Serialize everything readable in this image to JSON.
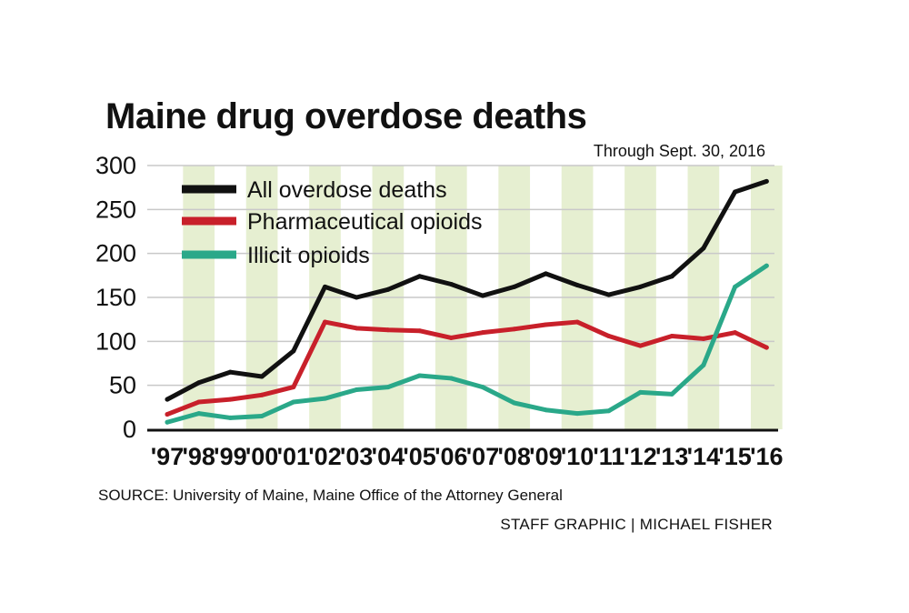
{
  "title": "Maine drug overdose deaths",
  "subtitle": "Through Sept. 30, 2016",
  "source": "SOURCE: University of Maine, Maine Office of the Attorney General",
  "credit": "STAFF GRAPHIC | MICHAEL FISHER",
  "colors": {
    "all": "#111111",
    "pharma": "#c8202a",
    "illicit": "#2aa889",
    "stripe": "#e6efd1",
    "grid": "#c9c9c9"
  },
  "chart_data": {
    "type": "line",
    "title": "Maine drug overdose deaths",
    "subtitle": "Through Sept. 30, 2016",
    "categories": [
      "'97",
      "'98",
      "'99",
      "'00",
      "'01",
      "'02",
      "'03",
      "'04",
      "'05",
      "'06",
      "'07",
      "'08",
      "'09",
      "'10",
      "'11",
      "'12",
      "'13",
      "'14",
      "'15",
      "'16"
    ],
    "ylim": [
      0,
      300
    ],
    "yticks": [
      0,
      50,
      100,
      150,
      200,
      250,
      300
    ],
    "grid": true,
    "legend_position": "top-left",
    "series": [
      {
        "name": "All overdose deaths",
        "color_key": "all",
        "values": [
          34,
          53,
          65,
          60,
          89,
          162,
          150,
          159,
          174,
          165,
          152,
          162,
          177,
          164,
          153,
          162,
          174,
          206,
          270,
          282
        ]
      },
      {
        "name": "Pharmaceutical opioids",
        "color_key": "pharma",
        "values": [
          17,
          31,
          34,
          39,
          48,
          122,
          115,
          113,
          112,
          104,
          110,
          114,
          119,
          122,
          106,
          95,
          106,
          103,
          110,
          93
        ]
      },
      {
        "name": "Illicit opioids",
        "color_key": "illicit",
        "values": [
          8,
          18,
          13,
          15,
          31,
          35,
          45,
          48,
          61,
          58,
          48,
          30,
          22,
          18,
          21,
          42,
          40,
          73,
          162,
          186
        ]
      }
    ]
  }
}
